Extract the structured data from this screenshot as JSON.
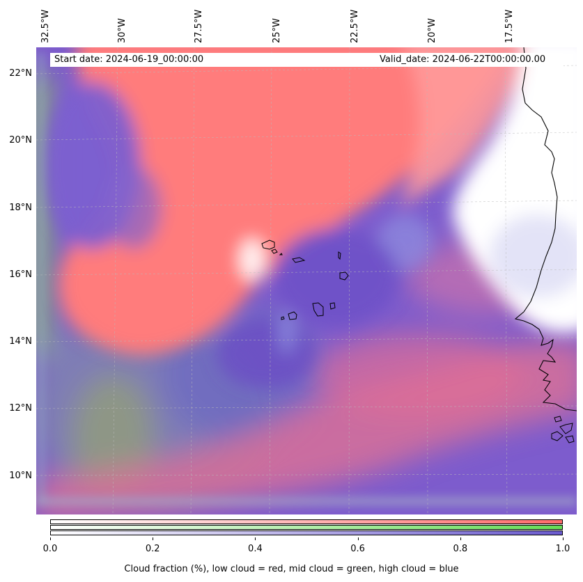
{
  "map": {
    "lon_labels": [
      "32.5°W",
      "30°W",
      "27.5°W",
      "25°W",
      "22.5°W",
      "20°W",
      "17.5°W"
    ],
    "lat_labels": [
      "22°N",
      "20°N",
      "18°N",
      "16°N",
      "14°N",
      "12°N",
      "10°N"
    ],
    "start_date": "Start date: 2024-06-19_00:00:00",
    "valid_date": "Valid_date: 2024-06-22T00:00:00.00"
  },
  "colorbar": {
    "ticks": [
      "0.0",
      "0.2",
      "0.4",
      "0.6",
      "0.8",
      "1.0"
    ],
    "label": "Cloud fraction (%), low cloud = red, mid cloud = green, high cloud = blue",
    "colors": {
      "low": "#ff6b6b",
      "mid": "#66dd55",
      "high": "#6a5acd"
    }
  },
  "colors": {
    "background_purple": "#8a5ad0",
    "low_cloud_red": "#ff7a7a",
    "clear_white": "#ffffff",
    "coastline": "#000000"
  }
}
